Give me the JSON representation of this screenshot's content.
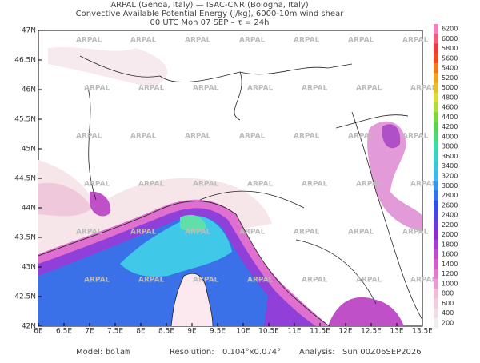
{
  "header": {
    "lines": [
      "ARPAL (Genoa, Italy)  —  ISAC-CNR (Bologna, Italy)",
      "Convective Available Potential Energy (J/kg), 6000-10m wind shear",
      "00 UTC Mon 07 SEP  –  τ = 24h"
    ]
  },
  "map": {
    "lat_labels": [
      "47N",
      "46.5N",
      "46N",
      "45.5N",
      "45N",
      "44.5N",
      "44N",
      "43.5N",
      "43N",
      "42.5N",
      "42N"
    ],
    "lon_labels": [
      "6E",
      "6.5E",
      "7E",
      "7.5E",
      "8E",
      "8.5E",
      "9E",
      "9.5E",
      "10E",
      "10.5E",
      "11E",
      "11.5E",
      "12E",
      "12.5E",
      "13E",
      "13.5E"
    ],
    "watermark": "ARPAL"
  },
  "colorbar": {
    "values": [
      6200,
      6000,
      5800,
      5600,
      5400,
      5200,
      5000,
      4800,
      4600,
      4400,
      4200,
      4000,
      3800,
      3600,
      3400,
      3200,
      3000,
      2800,
      2600,
      2400,
      2200,
      2000,
      1800,
      1600,
      1400,
      1200,
      1000,
      800,
      600,
      400,
      200
    ]
  },
  "footer": {
    "model_label": "Model:",
    "model": "bolam",
    "resolution_label": "Resolution:",
    "resolution": "0.104°x0.074°",
    "analysis_label": "Analysis:",
    "analysis": "Sun 00Z06SEP2026"
  }
}
